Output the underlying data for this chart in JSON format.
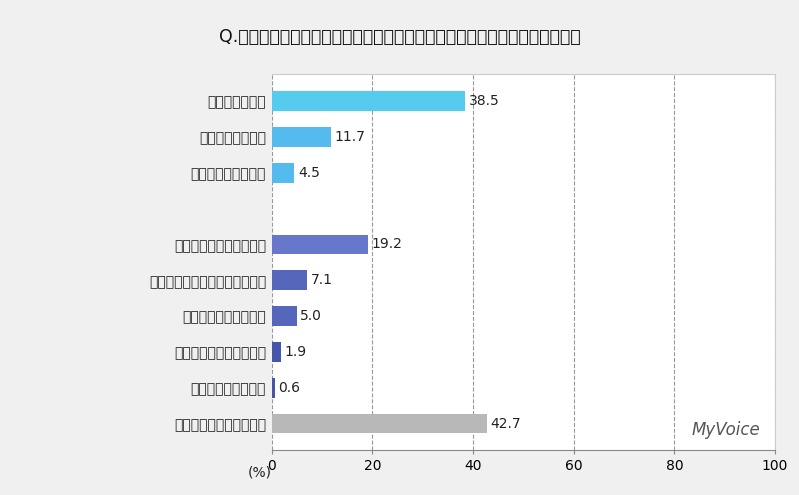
{
  "title": "Q.どのタイプのイヤホン・ヘッドホン・ヘッドセットを利用していますか？",
  "categories": [
    "いずれも利用していない",
    "その他・わからない",
    "ワイヤレスヘッドセット",
    "ワイヤレスヘッドホン",
    "左右一体型ワイヤレスイヤホン",
    "完全ワイヤレスイヤホン",
    "",
    "ヘッドセット・有線",
    "ヘッドホン・有線",
    "イヤホン・有線"
  ],
  "values": [
    42.7,
    0.6,
    1.9,
    5.0,
    7.1,
    19.2,
    0,
    4.5,
    11.7,
    38.5
  ],
  "colors": [
    "#b8b8b8",
    "#4455aa",
    "#4455aa",
    "#5566bb",
    "#5566bb",
    "#6677cc",
    "#ffffff",
    "#55bbee",
    "#55bbee",
    "#55ccee"
  ],
  "xlim": [
    0,
    100
  ],
  "xticks": [
    0,
    20,
    40,
    60,
    80,
    100
  ],
  "watermark": "MyVoice",
  "title_bg_color": "#d4d4d4",
  "plot_bg_color": "#ffffff",
  "outer_bg_color": "#f0f0f0",
  "bar_height": 0.55,
  "title_fontsize": 12.5,
  "label_fontsize": 10,
  "value_fontsize": 10,
  "xtick_fontsize": 10,
  "grid_color": "#999999",
  "grid_style": "--",
  "pct_label": "(%)"
}
